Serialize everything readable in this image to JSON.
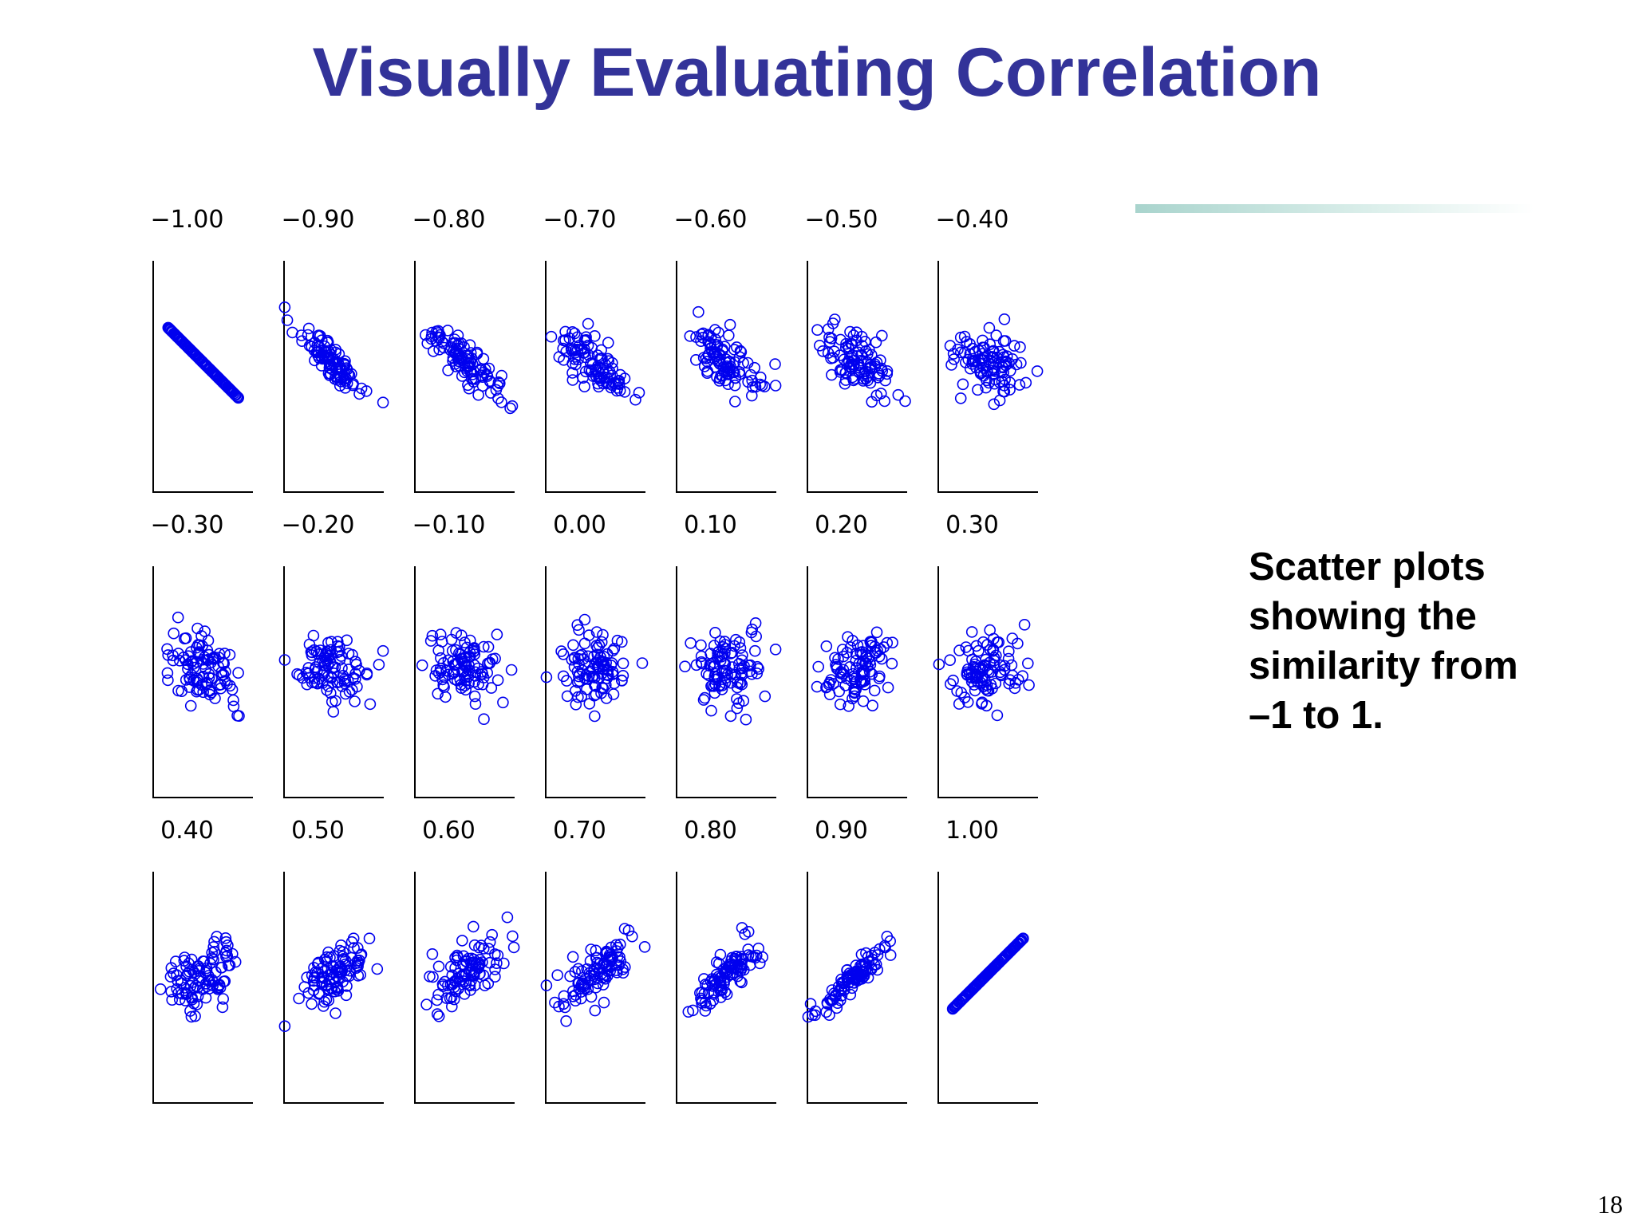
{
  "slide": {
    "title": "Visually Evaluating Correlation",
    "note_lines": [
      "Scatter plots",
      "showing the",
      "similarity from",
      "–1 to 1."
    ],
    "page_number": "18",
    "title_color": "#333399",
    "accent_bar_color": "#a9d4cd"
  },
  "chart_data": {
    "type": "scatter",
    "layout": "small-multiples",
    "rows": 3,
    "columns": 7,
    "marker": "open-circle",
    "marker_color": "#0000ee",
    "points_per_panel": 100,
    "panels": [
      {
        "label": "−1.00",
        "correlation": -1.0
      },
      {
        "label": "−0.90",
        "correlation": -0.9
      },
      {
        "label": "−0.80",
        "correlation": -0.8
      },
      {
        "label": "−0.70",
        "correlation": -0.7
      },
      {
        "label": "−0.60",
        "correlation": -0.6
      },
      {
        "label": "−0.50",
        "correlation": -0.5
      },
      {
        "label": "−0.40",
        "correlation": -0.4
      },
      {
        "label": "−0.30",
        "correlation": -0.3
      },
      {
        "label": "−0.20",
        "correlation": -0.2
      },
      {
        "label": "−0.10",
        "correlation": -0.1
      },
      {
        "label": "0.00",
        "correlation": 0.0
      },
      {
        "label": "0.10",
        "correlation": 0.1
      },
      {
        "label": "0.20",
        "correlation": 0.2
      },
      {
        "label": "0.30",
        "correlation": 0.3
      },
      {
        "label": "0.40",
        "correlation": 0.4
      },
      {
        "label": "0.50",
        "correlation": 0.5
      },
      {
        "label": "0.60",
        "correlation": 0.6
      },
      {
        "label": "0.70",
        "correlation": 0.7
      },
      {
        "label": "0.80",
        "correlation": 0.8
      },
      {
        "label": "0.90",
        "correlation": 0.9
      },
      {
        "label": "1.00",
        "correlation": 1.0
      }
    ]
  }
}
